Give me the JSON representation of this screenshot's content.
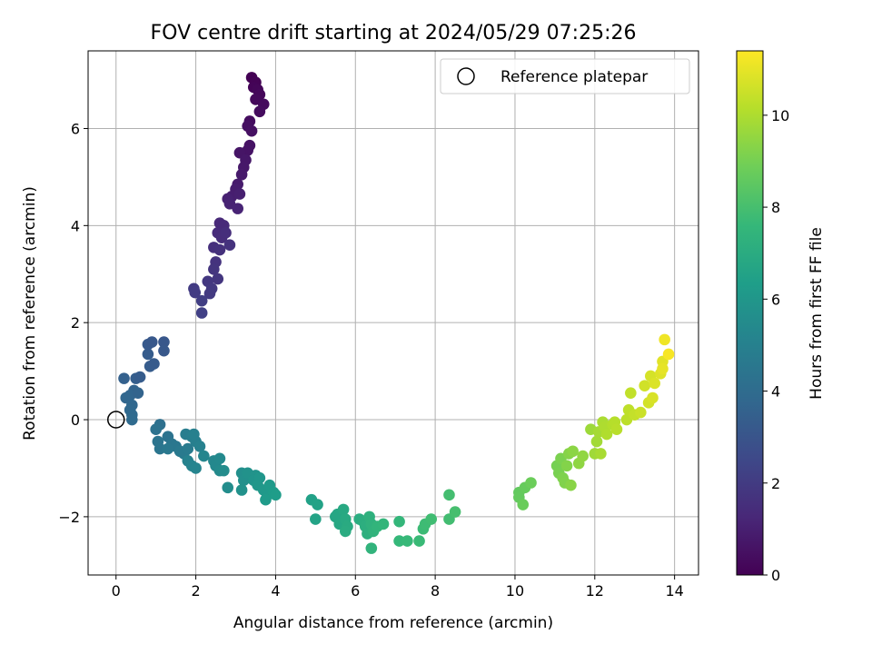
{
  "chart_data": {
    "type": "scatter",
    "title": "FOV centre drift starting at 2024/05/29 07:25:26",
    "xlabel": "Angular distance from reference (arcmin)",
    "ylabel": "Rotation from reference (arcmin)",
    "xlim": [
      -0.7,
      14.6
    ],
    "ylim": [
      -3.2,
      7.6
    ],
    "xticks": [
      0,
      2,
      4,
      6,
      8,
      10,
      12,
      14
    ],
    "yticks": [
      -2,
      0,
      2,
      4,
      6
    ],
    "grid": true,
    "legend": {
      "placement": "top-right",
      "entries": [
        "Reference platepar"
      ]
    },
    "reference_point": {
      "x": 0,
      "y": 0,
      "label": "Reference platepar"
    },
    "colorbar": {
      "label": "Hours from first FF file",
      "min": 0,
      "max": 11.4,
      "ticks": [
        0,
        2,
        4,
        6,
        8,
        10
      ],
      "colormap": "viridis",
      "stops": [
        "#440154",
        "#482878",
        "#3e4989",
        "#31688e",
        "#26828e",
        "#1f9e89",
        "#35b779",
        "#6ece58",
        "#b5de2b",
        "#fde725"
      ]
    },
    "points": [
      [
        3.4,
        7.05,
        0.0
      ],
      [
        3.5,
        6.95,
        0.05
      ],
      [
        3.45,
        6.85,
        0.1
      ],
      [
        3.55,
        6.8,
        0.15
      ],
      [
        3.6,
        6.7,
        0.2
      ],
      [
        3.5,
        6.6,
        0.25
      ],
      [
        3.7,
        6.5,
        0.3
      ],
      [
        3.6,
        6.35,
        0.35
      ],
      [
        3.35,
        6.15,
        0.4
      ],
      [
        3.3,
        6.05,
        0.45
      ],
      [
        3.4,
        5.95,
        0.5
      ],
      [
        3.35,
        5.65,
        0.55
      ],
      [
        3.3,
        5.55,
        0.6
      ],
      [
        3.1,
        5.5,
        0.65
      ],
      [
        3.25,
        5.35,
        0.7
      ],
      [
        3.2,
        5.2,
        0.75
      ],
      [
        3.15,
        5.05,
        0.8
      ],
      [
        3.05,
        4.85,
        0.85
      ],
      [
        3.0,
        4.75,
        0.9
      ],
      [
        2.9,
        4.6,
        0.95
      ],
      [
        3.1,
        4.65,
        1.0
      ],
      [
        2.8,
        4.55,
        1.05
      ],
      [
        2.85,
        4.45,
        1.1
      ],
      [
        3.05,
        4.35,
        1.15
      ],
      [
        2.6,
        4.05,
        1.3
      ],
      [
        2.7,
        4.0,
        1.35
      ],
      [
        2.55,
        3.85,
        1.4
      ],
      [
        2.65,
        3.75,
        1.45
      ],
      [
        2.75,
        3.85,
        1.5
      ],
      [
        2.45,
        3.55,
        1.55
      ],
      [
        2.6,
        3.5,
        1.6
      ],
      [
        2.85,
        3.6,
        1.65
      ],
      [
        2.5,
        3.25,
        1.7
      ],
      [
        2.45,
        3.1,
        1.75
      ],
      [
        2.55,
        2.9,
        1.8
      ],
      [
        2.3,
        2.85,
        1.85
      ],
      [
        2.4,
        2.7,
        1.9
      ],
      [
        2.35,
        2.6,
        1.95
      ],
      [
        1.95,
        2.7,
        2.0
      ],
      [
        1.98,
        2.62,
        2.05
      ],
      [
        2.15,
        2.45,
        2.1
      ],
      [
        2.15,
        2.2,
        2.2
      ],
      [
        0.2,
        0.85,
        3.5
      ],
      [
        0.5,
        0.85,
        3.4
      ],
      [
        0.6,
        0.88,
        3.3
      ],
      [
        0.85,
        1.1,
        3.3
      ],
      [
        0.95,
        1.15,
        3.25
      ],
      [
        0.8,
        1.35,
        3.3
      ],
      [
        0.8,
        1.55,
        3.2
      ],
      [
        0.9,
        1.6,
        3.15
      ],
      [
        1.2,
        1.6,
        3.1
      ],
      [
        1.2,
        1.42,
        3.15
      ],
      [
        0.45,
        0.6,
        3.6
      ],
      [
        0.35,
        0.5,
        3.7
      ],
      [
        0.25,
        0.45,
        3.75
      ],
      [
        0.4,
        0.3,
        3.8
      ],
      [
        0.55,
        0.55,
        3.65
      ],
      [
        0.35,
        0.2,
        3.85
      ],
      [
        0.4,
        0.1,
        3.9
      ],
      [
        0.4,
        0.0,
        3.95
      ],
      [
        1.1,
        -0.1,
        4.2
      ],
      [
        1.0,
        -0.2,
        4.3
      ],
      [
        1.3,
        -0.35,
        4.35
      ],
      [
        1.05,
        -0.45,
        4.4
      ],
      [
        1.1,
        -0.6,
        4.45
      ],
      [
        1.4,
        -0.5,
        4.5
      ],
      [
        1.5,
        -0.55,
        4.55
      ],
      [
        1.3,
        -0.6,
        4.6
      ],
      [
        1.6,
        -0.65,
        4.65
      ],
      [
        1.7,
        -0.7,
        4.7
      ],
      [
        1.8,
        -0.6,
        4.75
      ],
      [
        1.75,
        -0.3,
        4.8
      ],
      [
        1.9,
        -0.35,
        4.85
      ],
      [
        2.0,
        -0.45,
        4.9
      ],
      [
        1.95,
        -0.3,
        4.95
      ],
      [
        2.1,
        -0.55,
        5.0
      ],
      [
        1.8,
        -0.85,
        5.05
      ],
      [
        1.9,
        -0.95,
        5.1
      ],
      [
        2.0,
        -1.0,
        5.15
      ],
      [
        2.2,
        -0.75,
        5.2
      ],
      [
        2.45,
        -0.85,
        5.3
      ],
      [
        2.5,
        -0.95,
        5.35
      ],
      [
        2.6,
        -0.8,
        5.4
      ],
      [
        2.6,
        -1.05,
        5.45
      ],
      [
        2.7,
        -1.05,
        5.5
      ],
      [
        2.8,
        -1.4,
        5.55
      ],
      [
        3.15,
        -1.1,
        5.65
      ],
      [
        3.2,
        -1.25,
        5.7
      ],
      [
        3.15,
        -1.45,
        5.75
      ],
      [
        3.3,
        -1.1,
        5.8
      ],
      [
        3.5,
        -1.15,
        5.85
      ],
      [
        3.45,
        -1.25,
        5.9
      ],
      [
        3.6,
        -1.2,
        5.95
      ],
      [
        3.55,
        -1.35,
        6.0
      ],
      [
        3.7,
        -1.45,
        6.05
      ],
      [
        3.8,
        -1.55,
        6.1
      ],
      [
        3.85,
        -1.35,
        6.15
      ],
      [
        3.75,
        -1.65,
        6.2
      ],
      [
        3.95,
        -1.5,
        6.25
      ],
      [
        4.0,
        -1.55,
        6.3
      ],
      [
        4.9,
        -1.65,
        6.5
      ],
      [
        5.05,
        -1.75,
        6.55
      ],
      [
        5.0,
        -2.05,
        6.6
      ],
      [
        5.5,
        -2.0,
        6.7
      ],
      [
        5.55,
        -1.95,
        6.75
      ],
      [
        5.6,
        -2.15,
        6.8
      ],
      [
        5.7,
        -1.85,
        6.85
      ],
      [
        5.75,
        -2.05,
        6.9
      ],
      [
        5.8,
        -2.2,
        6.95
      ],
      [
        5.75,
        -2.3,
        7.0
      ],
      [
        6.1,
        -2.05,
        7.05
      ],
      [
        6.2,
        -2.1,
        7.1
      ],
      [
        6.25,
        -2.2,
        7.15
      ],
      [
        6.3,
        -2.35,
        7.2
      ],
      [
        6.35,
        -2.0,
        7.25
      ],
      [
        6.4,
        -2.15,
        7.3
      ],
      [
        6.45,
        -2.3,
        7.35
      ],
      [
        6.4,
        -2.65,
        7.4
      ],
      [
        6.55,
        -2.2,
        7.45
      ],
      [
        6.7,
        -2.15,
        7.5
      ],
      [
        7.1,
        -2.1,
        7.55
      ],
      [
        7.1,
        -2.5,
        7.6
      ],
      [
        7.3,
        -2.5,
        7.65
      ],
      [
        7.6,
        -2.5,
        7.7
      ],
      [
        7.7,
        -2.25,
        7.75
      ],
      [
        7.75,
        -2.15,
        7.8
      ],
      [
        7.9,
        -2.05,
        7.85
      ],
      [
        8.35,
        -2.05,
        7.9
      ],
      [
        8.35,
        -1.55,
        7.95
      ],
      [
        8.5,
        -1.9,
        8.0
      ],
      [
        10.1,
        -1.5,
        8.6
      ],
      [
        10.1,
        -1.6,
        8.65
      ],
      [
        10.25,
        -1.4,
        8.7
      ],
      [
        10.2,
        -1.75,
        8.75
      ],
      [
        10.4,
        -1.3,
        8.8
      ],
      [
        11.05,
        -0.95,
        9.0
      ],
      [
        11.1,
        -1.1,
        9.05
      ],
      [
        11.15,
        -0.8,
        9.1
      ],
      [
        11.2,
        -1.2,
        9.15
      ],
      [
        11.25,
        -1.3,
        9.2
      ],
      [
        11.3,
        -0.95,
        9.25
      ],
      [
        11.35,
        -0.7,
        9.3
      ],
      [
        11.4,
        -1.35,
        9.35
      ],
      [
        11.45,
        -0.65,
        9.4
      ],
      [
        11.6,
        -0.9,
        9.45
      ],
      [
        11.7,
        -0.75,
        9.5
      ],
      [
        11.9,
        -0.2,
        9.7
      ],
      [
        12.0,
        -0.7,
        9.75
      ],
      [
        12.05,
        -0.45,
        9.8
      ],
      [
        12.1,
        -0.25,
        9.85
      ],
      [
        12.15,
        -0.7,
        9.9
      ],
      [
        12.2,
        -0.05,
        9.95
      ],
      [
        12.25,
        -0.15,
        10.0
      ],
      [
        12.3,
        -0.3,
        10.05
      ],
      [
        12.45,
        -0.1,
        10.1
      ],
      [
        12.5,
        -0.05,
        10.15
      ],
      [
        12.55,
        -0.2,
        10.2
      ],
      [
        12.8,
        0.0,
        10.25
      ],
      [
        12.85,
        0.2,
        10.3
      ],
      [
        12.9,
        0.55,
        10.35
      ],
      [
        13.0,
        0.1,
        10.4
      ],
      [
        13.15,
        0.15,
        10.5
      ],
      [
        13.25,
        0.7,
        10.6
      ],
      [
        13.35,
        0.35,
        10.65
      ],
      [
        13.4,
        0.9,
        10.7
      ],
      [
        13.45,
        0.45,
        10.75
      ],
      [
        13.5,
        0.75,
        10.8
      ],
      [
        13.65,
        0.95,
        10.85
      ],
      [
        13.7,
        1.2,
        10.9
      ],
      [
        13.7,
        1.05,
        11.0
      ],
      [
        13.75,
        1.65,
        11.15
      ],
      [
        13.85,
        1.35,
        11.3
      ]
    ]
  }
}
